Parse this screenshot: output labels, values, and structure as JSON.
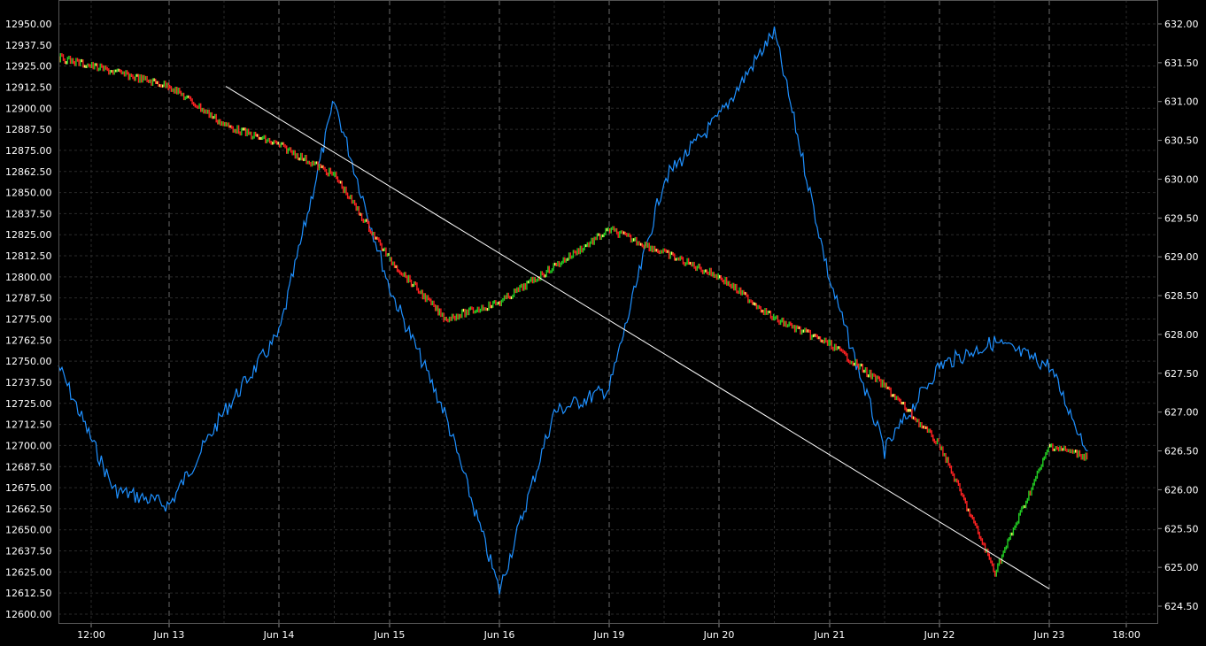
{
  "chart_data": {
    "type": "line",
    "title": "",
    "grid": true,
    "x_ticks": [
      "12:00",
      "Jun 13",
      "Jun 14",
      "Jun 15",
      "Jun 16",
      "Jun 19",
      "Jun 20",
      "Jun 21",
      "Jun 22",
      "Jun 23",
      "18:00"
    ],
    "session_separators": [
      "Jun 13",
      "Jun 14",
      "Jun 15",
      "Jun 16",
      "Jun 19",
      "Jun 20",
      "Jun 21",
      "Jun 22",
      "Jun 23"
    ],
    "left_axis": {
      "ylim": [
        12600.0,
        12950.0
      ],
      "tick_step": 12.5,
      "ticks": [
        "12950.00",
        "12937.50",
        "12925.00",
        "12912.50",
        "12900.00",
        "12887.50",
        "12875.00",
        "12862.50",
        "12850.00",
        "12837.50",
        "12825.00",
        "12812.50",
        "12800.00",
        "12787.50",
        "12775.00",
        "12762.50",
        "12750.00",
        "12737.50",
        "12725.00",
        "12712.50",
        "12700.00",
        "12687.50",
        "12675.00",
        "12662.50",
        "12650.00",
        "12637.50",
        "12625.00",
        "12612.50",
        "12600.00"
      ]
    },
    "right_axis": {
      "ylim": [
        624.33,
        632.2
      ],
      "tick_step": 0.5,
      "ticks": [
        "632.00",
        "631.50",
        "631.00",
        "630.50",
        "630.00",
        "629.50",
        "629.00",
        "628.50",
        "628.00",
        "627.50",
        "627.00",
        "626.50",
        "626.00",
        "625.50",
        "625.00",
        "624.50"
      ]
    },
    "series": [
      {
        "axis": "left",
        "style": "multicolor-candles",
        "colors": {
          "up": "#22cc22",
          "down": "#ff2222",
          "flat": "#ffff66"
        },
        "points": [
          [
            "12:00",
            12930
          ],
          [
            "Jun 13",
            12913
          ],
          [
            "Jun 13",
            12890
          ],
          [
            "Jun 14",
            12878
          ],
          [
            "Jun 14",
            12860
          ],
          [
            "Jun 15",
            12810
          ],
          [
            "Jun 15",
            12775
          ],
          [
            "Jun 16",
            12785
          ],
          [
            "Jun 19",
            12828
          ],
          [
            "Jun 20",
            12800
          ],
          [
            "Jun 20",
            12775
          ],
          [
            "Jun 21",
            12760
          ],
          [
            "Jun 21",
            12735
          ],
          [
            "Jun 22",
            12700
          ],
          [
            "Jun 22",
            12625
          ],
          [
            "Jun 23",
            12700
          ],
          [
            "Jun 23",
            12693
          ]
        ]
      },
      {
        "axis": "right",
        "style": "line",
        "color": "#1e90ff",
        "points": [
          [
            "12:00",
            627.6
          ],
          [
            "12:00",
            626.0
          ],
          [
            "Jun 13",
            625.8
          ],
          [
            "Jun 13",
            627.0
          ],
          [
            "Jun 14",
            628.0
          ],
          [
            "Jun 14",
            631.0
          ],
          [
            "Jun 15",
            628.6
          ],
          [
            "Jun 15",
            627.0
          ],
          [
            "Jun 16",
            624.7
          ],
          [
            "Jun 16",
            627.0
          ],
          [
            "Jun 19",
            627.3
          ],
          [
            "Jun 19",
            630.0
          ],
          [
            "Jun 20",
            630.8
          ],
          [
            "Jun 20",
            631.9
          ],
          [
            "Jun 21",
            628.7
          ],
          [
            "Jun 21",
            626.5
          ],
          [
            "Jun 22",
            627.6
          ],
          [
            "Jun 22",
            627.9
          ],
          [
            "Jun 23",
            627.6
          ],
          [
            "Jun 23",
            626.5
          ]
        ]
      }
    ],
    "trendline": {
      "axis": "left",
      "color": "#ffffff",
      "from": [
        "Jun 13",
        12913
      ],
      "to": [
        "Jun 23",
        12615
      ]
    }
  }
}
